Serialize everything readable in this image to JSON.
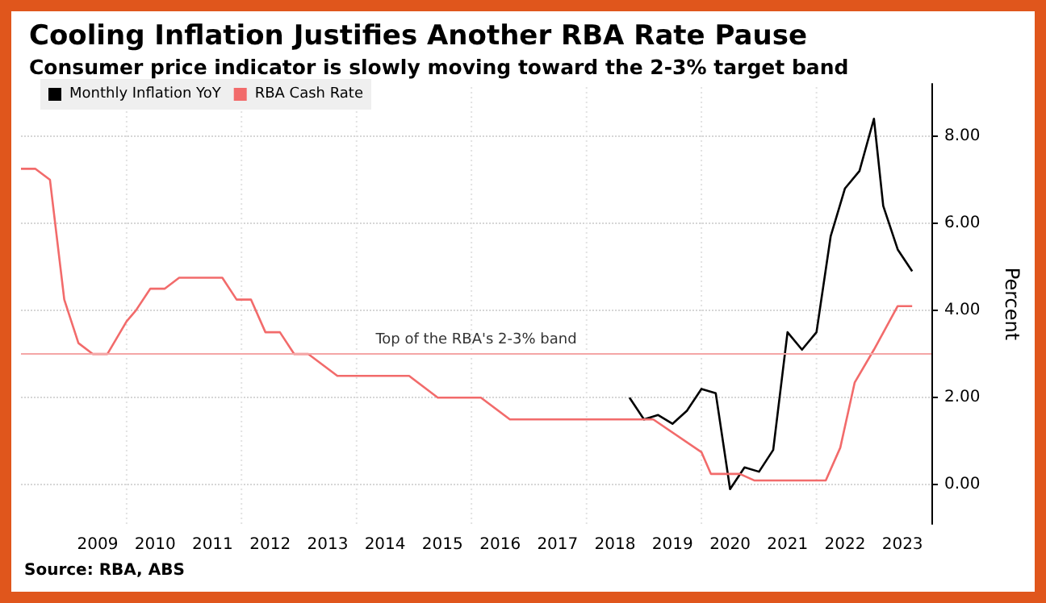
{
  "chart_data": {
    "type": "line",
    "title": "Cooling Inflation Justifies Another RBA Rate Pause",
    "subtitle": "Consumer price indicator is slowly moving toward the 2-3% target band",
    "ylabel": "Percent",
    "annotations": [
      "Source: RBA, ABS"
    ],
    "series": [
      {
        "name": "Monthly Inflation YoY",
        "color": "#000000",
        "x": [
          "2018-10",
          "2019-01",
          "2019-04",
          "2019-07",
          "2019-10",
          "2020-01",
          "2020-04",
          "2020-07",
          "2020-10",
          "2021-01",
          "2021-04",
          "2021-07",
          "2021-10",
          "2022-01",
          "2022-04",
          "2022-07",
          "2022-10",
          "2023-01",
          "2023-03",
          "2023-06",
          "2023-09"
        ],
        "values": [
          2.0,
          1.5,
          1.6,
          1.4,
          1.7,
          2.2,
          2.1,
          -0.1,
          0.4,
          0.3,
          0.8,
          3.5,
          3.1,
          3.5,
          5.7,
          6.8,
          7.2,
          8.4,
          6.4,
          5.4,
          4.9
        ]
      },
      {
        "name": "RBA Cash Rate",
        "color": "#f26b6b",
        "x": [
          "2008-03",
          "2008-06",
          "2008-09",
          "2008-12",
          "2009-03",
          "2009-06",
          "2009-09",
          "2010-01",
          "2010-03",
          "2010-06",
          "2010-09",
          "2010-12",
          "2011-09",
          "2011-12",
          "2012-03",
          "2012-06",
          "2012-09",
          "2012-12",
          "2013-03",
          "2013-09",
          "2014-12",
          "2015-06",
          "2016-03",
          "2016-09",
          "2019-03",
          "2020-01",
          "2020-03",
          "2020-09",
          "2020-12",
          "2022-03",
          "2022-06",
          "2022-09",
          "2023-01",
          "2023-06",
          "2023-09"
        ],
        "values": [
          7.25,
          7.25,
          7.0,
          4.25,
          3.25,
          3.0,
          3.0,
          3.75,
          4.0,
          4.5,
          4.5,
          4.75,
          4.75,
          4.25,
          4.25,
          3.5,
          3.5,
          3.0,
          3.0,
          2.5,
          2.5,
          2.0,
          2.0,
          1.5,
          1.5,
          0.75,
          0.25,
          0.25,
          0.1,
          0.1,
          0.85,
          2.35,
          3.1,
          4.1,
          4.1
        ]
      }
    ],
    "xlim": [
      "2008-03",
      "2024-01"
    ],
    "xticks": [
      {
        "value": "2009-07",
        "label": "2009"
      },
      {
        "value": "2010-01",
        "label": null
      },
      {
        "value": "2010-07",
        "label": "2010"
      },
      {
        "value": "2011-07",
        "label": "2011"
      },
      {
        "value": "2012-01",
        "label": null
      },
      {
        "value": "2012-07",
        "label": "2012"
      },
      {
        "value": "2013-07",
        "label": "2013"
      },
      {
        "value": "2014-01",
        "label": null
      },
      {
        "value": "2014-07",
        "label": "2014"
      },
      {
        "value": "2015-07",
        "label": "2015"
      },
      {
        "value": "2016-01",
        "label": null
      },
      {
        "value": "2016-07",
        "label": "2016"
      },
      {
        "value": "2017-07",
        "label": "2017"
      },
      {
        "value": "2018-01",
        "label": null
      },
      {
        "value": "2018-07",
        "label": "2018"
      },
      {
        "value": "2019-07",
        "label": "2019"
      },
      {
        "value": "2020-01",
        "label": null
      },
      {
        "value": "2020-07",
        "label": "2020"
      },
      {
        "value": "2021-07",
        "label": "2021"
      },
      {
        "value": "2022-01",
        "label": null
      },
      {
        "value": "2022-07",
        "label": "2022"
      },
      {
        "value": "2023-07",
        "label": "2023"
      }
    ],
    "ylim": [
      -0.9,
      9.2
    ],
    "yticks": [
      {
        "value": 0,
        "label": "0.00"
      },
      {
        "value": 2,
        "label": "2.00"
      },
      {
        "value": 4,
        "label": "4.00"
      },
      {
        "value": 6,
        "label": "6.00"
      },
      {
        "value": 8,
        "label": "8.00"
      }
    ],
    "ref_lines": [
      {
        "axis": "y",
        "value": 3,
        "label": "Top of the RBA's 2-3% band",
        "color": "#f4a6a6"
      }
    ],
    "grid": true,
    "legend": "top left"
  }
}
